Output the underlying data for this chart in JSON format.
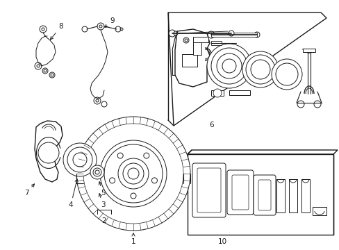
{
  "bg_color": "#ffffff",
  "lc": "#1a1a1a",
  "lw": 0.7,
  "fig_w": 4.89,
  "fig_h": 3.6,
  "dpi": 100
}
